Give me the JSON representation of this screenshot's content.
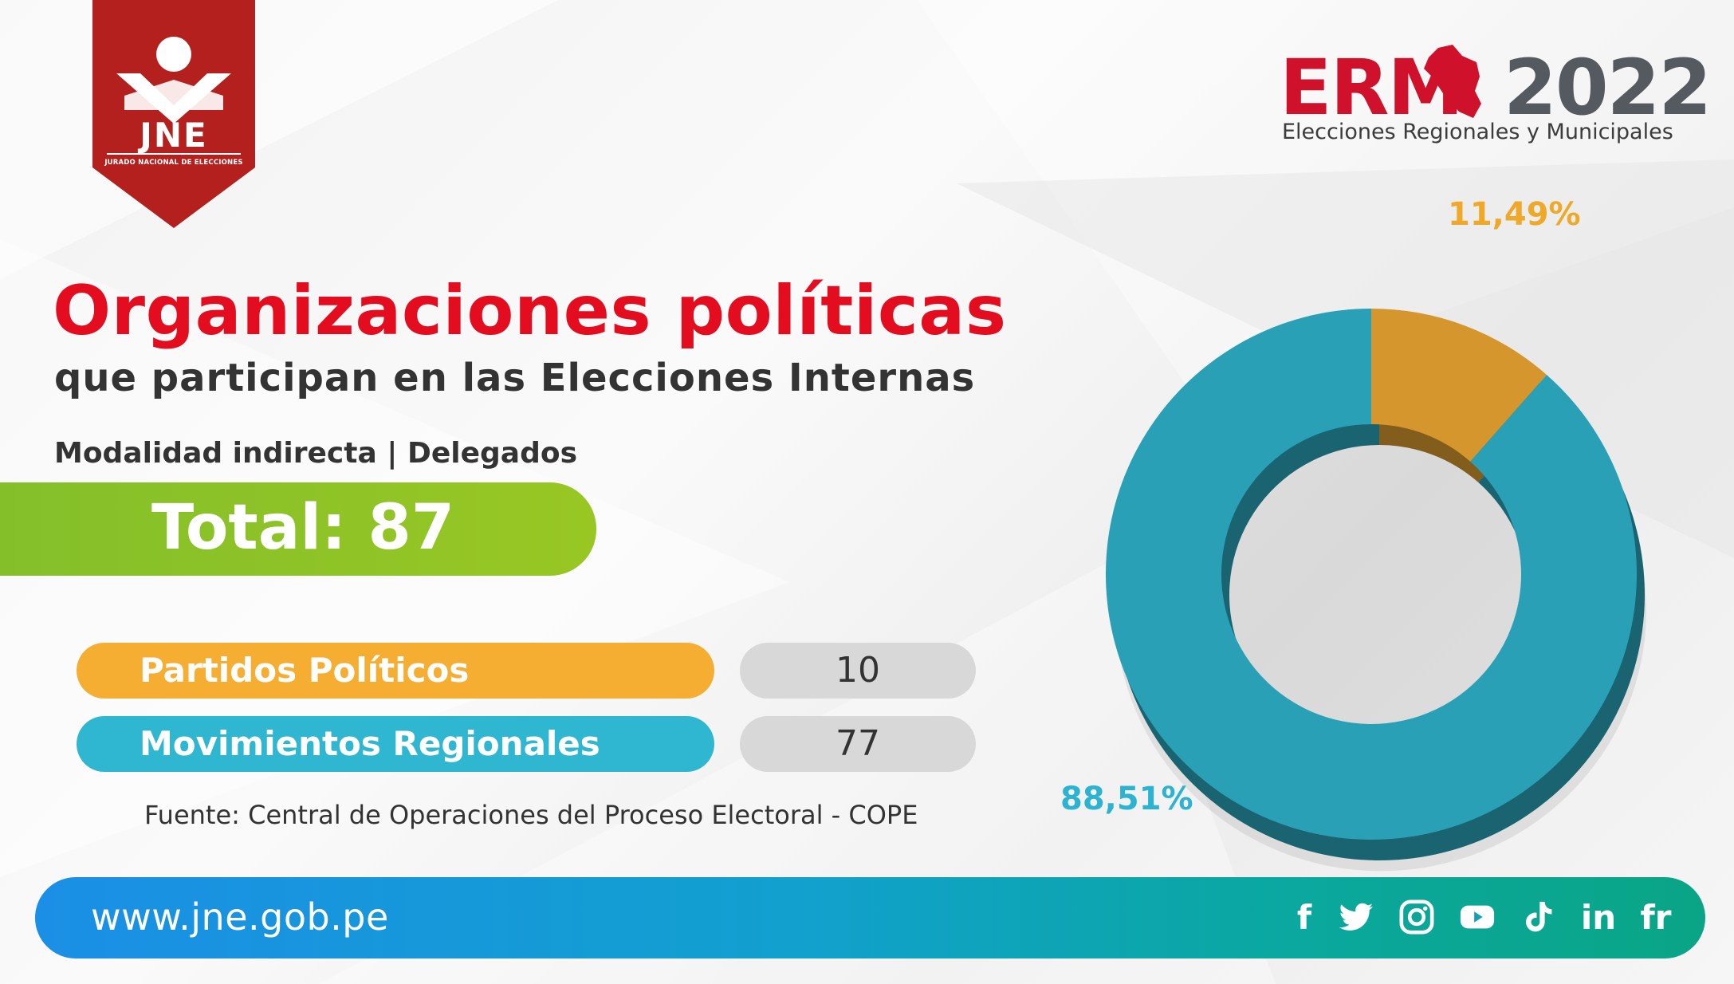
{
  "header": {
    "jne_logo_text": "JNE",
    "jne_logo_subtext": "JURADO NACIONAL DE ELECCIONES",
    "erm_logo_red": "ERM",
    "erm_logo_gray": "2022",
    "erm_subtitle": "Elecciones Regionales y Municipales"
  },
  "main": {
    "title": "Organizaciones políticas",
    "subtitle": "que participan en las Elecciones Internas",
    "modality": "Modalidad indirecta | Delegados",
    "total": "Total: 87",
    "categories": [
      {
        "label": "Partidos Políticos",
        "value": "10"
      },
      {
        "label": "Movimientos Regionales",
        "value": "77"
      }
    ],
    "source": "Fuente: Central de Operaciones del Proceso Electoral - COPE"
  },
  "chart_data": {
    "type": "pie",
    "style": "donut",
    "categories": [
      "Partidos Políticos",
      "Movimientos Regionales"
    ],
    "values": [
      11.49,
      88.51
    ],
    "labels": [
      "11,49%",
      "88,51%"
    ],
    "colors": [
      "#d4962d",
      "#2aa0b6"
    ],
    "label_colors": [
      "#f0a828",
      "#2cb3d2"
    ]
  },
  "footer": {
    "url": "www.jne.gob.pe",
    "social": [
      {
        "icon": "facebook-icon",
        "text": "f"
      },
      {
        "icon": "twitter-icon"
      },
      {
        "icon": "instagram-icon"
      },
      {
        "icon": "youtube-icon"
      },
      {
        "icon": "tiktok-icon"
      },
      {
        "icon": "linkedin-icon",
        "text": "in"
      },
      {
        "icon": "flickr-icon",
        "text": "fr"
      }
    ]
  }
}
